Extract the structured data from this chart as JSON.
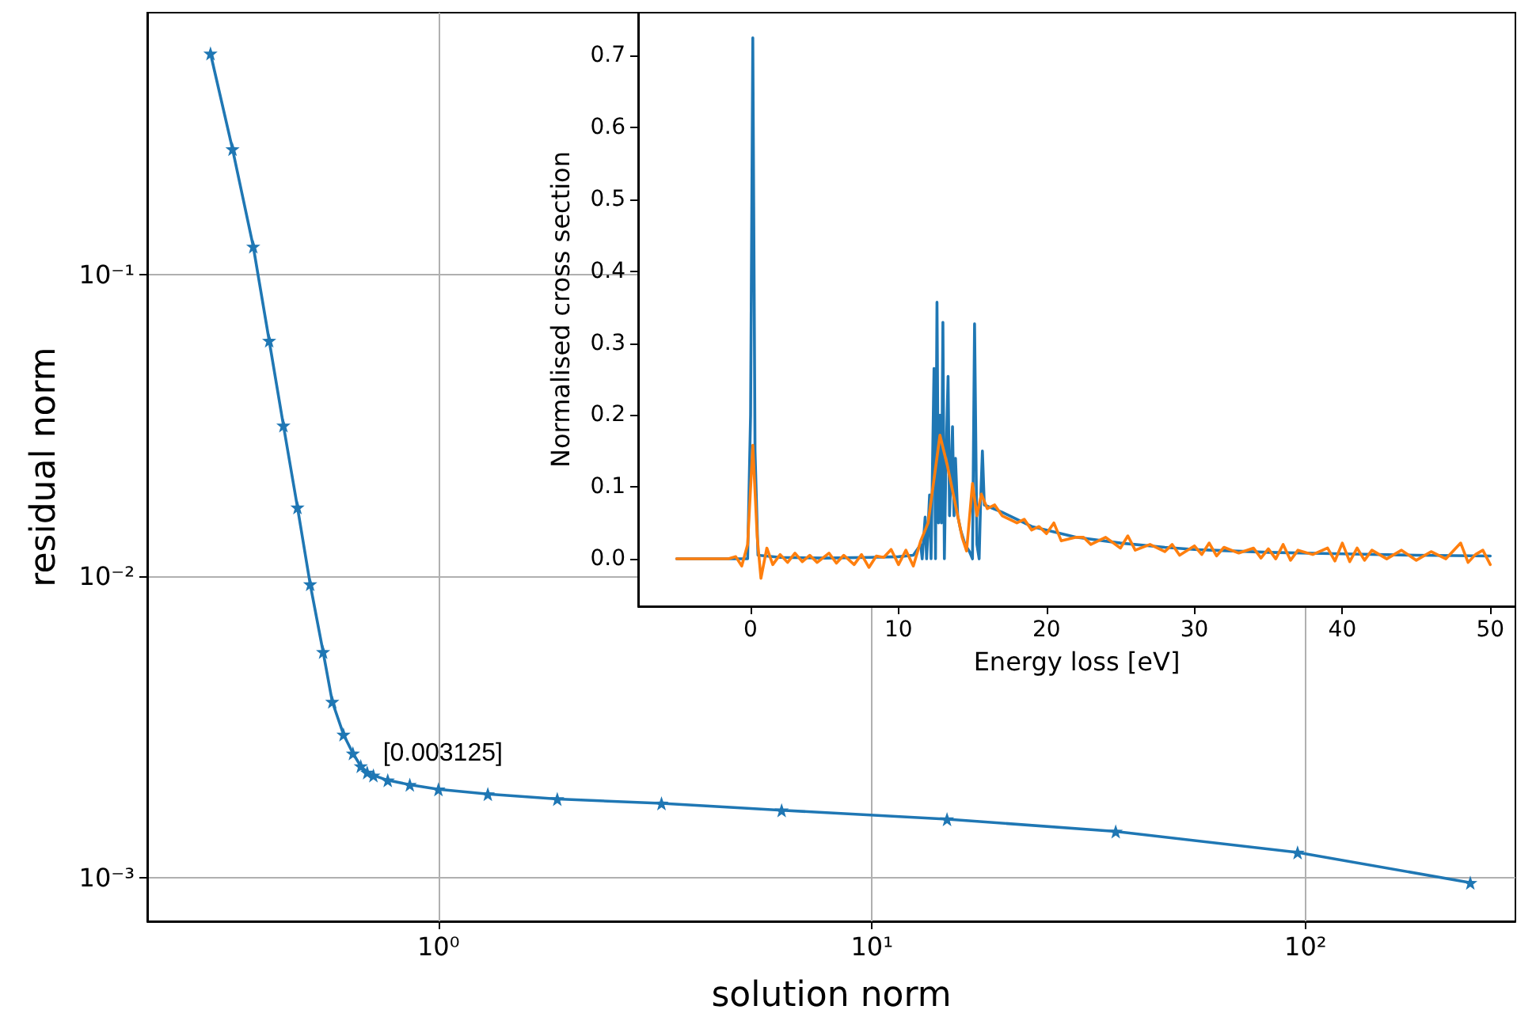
{
  "chart_data": [
    {
      "type": "line",
      "xlabel": "solution norm",
      "ylabel": "residual norm",
      "log": "xy",
      "grid": true,
      "marker": "star",
      "xlim": [
        0.213,
        305
      ],
      "ylim": [
        0.000715,
        0.74
      ],
      "xticks": [
        {
          "value": 1,
          "label": "10⁰"
        },
        {
          "value": 10,
          "label": "10¹"
        },
        {
          "value": 100,
          "label": "10²"
        }
      ],
      "yticks": [
        {
          "value": 0.001,
          "label": "10⁻³"
        },
        {
          "value": 0.01,
          "label": "10⁻²"
        },
        {
          "value": 0.1,
          "label": "10⁻¹"
        }
      ],
      "x": [
        0.298,
        0.335,
        0.374,
        0.407,
        0.439,
        0.473,
        0.506,
        0.542,
        0.569,
        0.604,
        0.635,
        0.662,
        0.685,
        0.708,
        0.764,
        0.859,
        1.0,
        1.3,
        1.88,
        3.27,
        6.19,
        14.9,
        36.5,
        95.9,
        240
      ],
      "series": [
        {
          "color": "#1f77b4",
          "values": [
            0.542,
            0.261,
            0.124,
            0.0604,
            0.0316,
            0.0169,
            0.0094,
            0.0056,
            0.00383,
            0.00298,
            0.00258,
            0.00234,
            0.00223,
            0.00218,
            0.0021,
            0.00203,
            0.00196,
            0.00189,
            0.00182,
            0.00176,
            0.00167,
            0.00156,
            0.00142,
            0.00121,
            0.00096
          ]
        }
      ],
      "annotations": [
        {
          "text": "[0.003125]",
          "x": 0.708,
          "y": 0.00218
        }
      ]
    },
    {
      "type": "line",
      "xlabel": "Energy loss [eV]",
      "ylabel": "Normalised cross section",
      "grid": false,
      "marker": "none",
      "xlim": [
        -7.6,
        51.7
      ],
      "ylim": [
        -0.066,
        0.76
      ],
      "xticks": [
        0,
        10,
        20,
        30,
        40,
        50
      ],
      "yticks": [
        {
          "value": 0,
          "label": "0.0"
        },
        {
          "value": 0.1,
          "label": "0.1"
        },
        {
          "value": 0.2,
          "label": "0.2"
        },
        {
          "value": 0.3,
          "label": "0.3"
        },
        {
          "value": 0.4,
          "label": "0.4"
        },
        {
          "value": 0.5,
          "label": "0.5"
        },
        {
          "value": 0.6,
          "label": "0.6"
        },
        {
          "value": 0.7,
          "label": "0.7"
        }
      ],
      "series": [
        {
          "color": "#1f77b4",
          "x": [
            -5,
            -0.2,
            0,
            0.15,
            0.3,
            0.5,
            2,
            5,
            8,
            10,
            11,
            11.5,
            11.6,
            11.8,
            11.9,
            12.1,
            12.2,
            12.4,
            12.5,
            12.6,
            12.7,
            12.8,
            12.9,
            13.0,
            13.1,
            13.2,
            13.35,
            13.45,
            13.55,
            13.65,
            13.75,
            13.85,
            14.0,
            14.2,
            14.5,
            14.8,
            15.0,
            15.14,
            15.3,
            15.45,
            15.55,
            15.67,
            15.8,
            17,
            18,
            19,
            20,
            22,
            25,
            28,
            30,
            35,
            40,
            45,
            50
          ],
          "values": [
            0,
            0,
            0.2,
            0.725,
            0.15,
            0.005,
            0.002,
            0.001,
            0.002,
            0.003,
            0.005,
            0.02,
            0,
            0.058,
            0,
            0.089,
            0,
            0.265,
            0,
            0.357,
            0.05,
            0.2,
            0.05,
            0.329,
            0,
            0.13,
            0.254,
            0.06,
            0.12,
            0.184,
            0.06,
            0.14,
            0.06,
            0.04,
            0.02,
            0.01,
            0,
            0.327,
            0.02,
            0,
            0.08,
            0.15,
            0.075,
            0.065,
            0.055,
            0.045,
            0.04,
            0.03,
            0.022,
            0.016,
            0.013,
            0.009,
            0.007,
            0.005,
            0.004
          ]
        },
        {
          "color": "#ff7f0e",
          "x": [
            -5,
            -1.5,
            -1,
            -0.6,
            -0.2,
            0.15,
            0.45,
            0.7,
            1.1,
            1.5,
            2,
            2.5,
            3,
            3.5,
            4,
            4.5,
            5.3,
            5.8,
            6.3,
            7,
            7.5,
            8,
            8.5,
            9,
            9.5,
            10,
            10.5,
            11,
            11.5,
            12,
            12.8,
            13.3,
            13.8,
            14.3,
            14.6,
            15.0,
            15.3,
            15.6,
            16,
            16.5,
            17,
            17.5,
            18,
            18.5,
            19,
            19.5,
            20,
            20.5,
            21,
            22,
            22.5,
            23,
            24,
            25,
            25.5,
            26,
            27,
            28,
            28.5,
            29,
            30,
            30.5,
            31,
            31.5,
            32,
            33,
            34,
            34.5,
            35,
            35.5,
            36,
            36.5,
            37,
            38,
            39,
            39.5,
            40,
            40.5,
            41,
            41.5,
            42,
            43,
            44,
            45,
            46,
            47,
            48,
            48.5,
            49,
            49.5,
            50
          ],
          "values": [
            0,
            0,
            0.003,
            -0.01,
            0.02,
            0.158,
            0.03,
            -0.027,
            0.015,
            -0.008,
            0.006,
            -0.005,
            0.008,
            -0.004,
            0.005,
            -0.005,
            0.008,
            -0.006,
            0.005,
            -0.008,
            0.006,
            -0.012,
            0.004,
            0.002,
            0.013,
            -0.008,
            0.012,
            -0.01,
            0.025,
            0.05,
            0.172,
            0.13,
            0.08,
            0.03,
            0.011,
            0.105,
            0.06,
            0.09,
            0.07,
            0.075,
            0.06,
            0.055,
            0.05,
            0.055,
            0.04,
            0.045,
            0.035,
            0.05,
            0.025,
            0.03,
            0.03,
            0.02,
            0.03,
            0.015,
            0.032,
            0.012,
            0.02,
            0.01,
            0.02,
            0.005,
            0.018,
            0.006,
            0.022,
            0.004,
            0.016,
            0.008,
            0.015,
            0.001,
            0.014,
            0,
            0.02,
            -0.002,
            0.012,
            0.006,
            0.015,
            -0.003,
            0.022,
            -0.004,
            0.015,
            -0.002,
            0.012,
            0,
            0.012,
            -0.002,
            0.01,
            0,
            0.022,
            -0.005,
            0.006,
            0.012,
            -0.008
          ]
        }
      ]
    }
  ]
}
